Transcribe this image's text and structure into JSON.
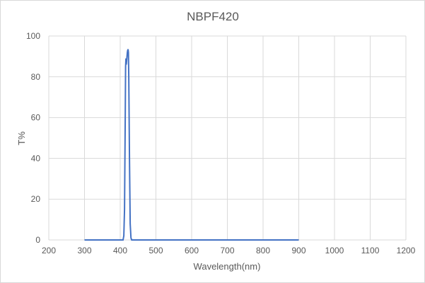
{
  "chart_data": {
    "type": "line",
    "title": "NBPF420",
    "xlabel": "Wavelength(nm)",
    "ylabel": "T%",
    "xlim": [
      200,
      1200
    ],
    "ylim": [
      0,
      100
    ],
    "xticks": [
      200,
      300,
      400,
      500,
      600,
      700,
      800,
      900,
      1000,
      1100,
      1200
    ],
    "yticks": [
      0,
      20,
      40,
      60,
      80,
      100
    ],
    "grid": true,
    "line_color": "#4472c4",
    "series": [
      {
        "x": [
          300,
          408,
          410,
          412,
          414,
          415,
          416,
          417,
          418,
          419,
          420,
          421,
          422,
          423,
          424,
          426,
          428,
          430,
          432,
          900
        ],
        "y": [
          0,
          0,
          2,
          15,
          60,
          85,
          89,
          86,
          88,
          90,
          92,
          93,
          93.5,
          92,
          80,
          40,
          8,
          1,
          0,
          0
        ]
      }
    ]
  }
}
